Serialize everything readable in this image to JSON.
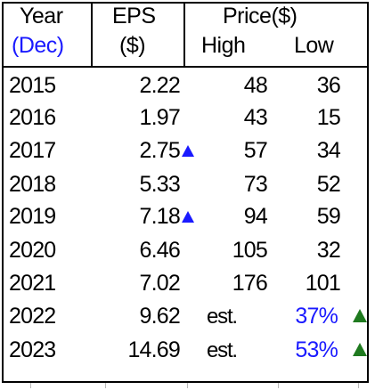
{
  "header": {
    "year": "Year",
    "year_sub": "(Dec)",
    "eps": "EPS",
    "eps_sub": "($)",
    "price": "Price($)",
    "high": "High",
    "low": "Low"
  },
  "rows": [
    {
      "year": "2015",
      "eps": "2.22",
      "high": "48",
      "low": "36"
    },
    {
      "year": "2016",
      "eps": "1.97",
      "high": "43",
      "low": "15"
    },
    {
      "year": "2017",
      "eps": "2.75",
      "eps_up": true,
      "high": "57",
      "low": "34"
    },
    {
      "year": "2018",
      "eps": "5.33",
      "high": "73",
      "low": "52"
    },
    {
      "year": "2019",
      "eps": "7.18",
      "eps_up": true,
      "high": "94",
      "low": "59"
    },
    {
      "year": "2020",
      "eps": "6.46",
      "high": "105",
      "low": "32"
    },
    {
      "year": "2021",
      "eps": "7.02",
      "high": "176",
      "low": "101"
    },
    {
      "year": "2022",
      "eps": "9.62",
      "high": "est.",
      "low": "37%",
      "low_up": true
    },
    {
      "year": "2023",
      "eps": "14.69",
      "high": "est.",
      "low": "53%",
      "low_up": true
    }
  ],
  "colors": {
    "accent_blue": "#1a1aff",
    "up_green": "#1f7a1f",
    "up_blue": "#1a1aff"
  },
  "icons": {
    "eps_up": "triangle-up-icon",
    "pct_up": "triangle-up-icon"
  }
}
